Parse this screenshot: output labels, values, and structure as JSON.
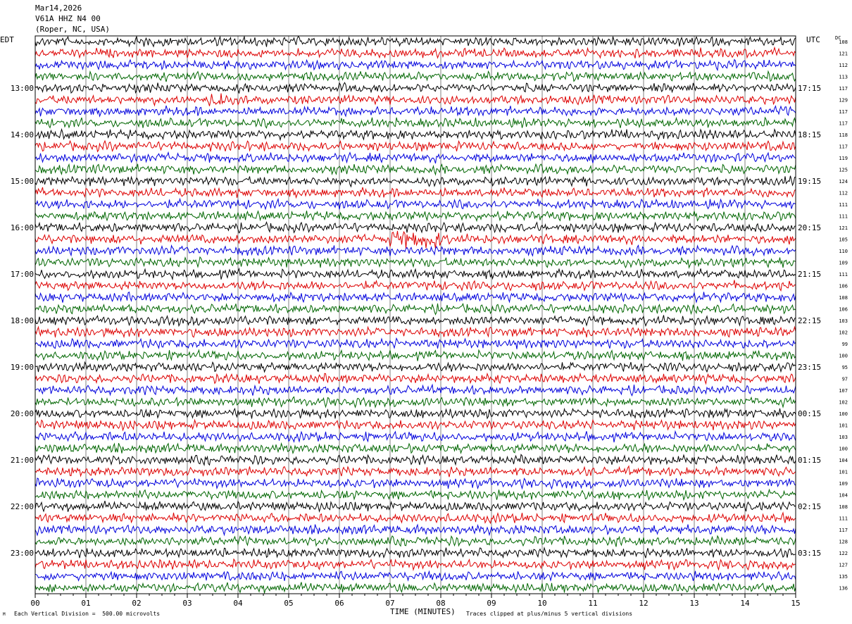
{
  "header": {
    "date": "Mar14,2026",
    "station": "V61A HHZ N4 00",
    "location": "(Roper, NC, USA)"
  },
  "left_zone_label": "EDT",
  "right_zone_label": "UTC",
  "dc_header": "DC",
  "footer": {
    "scale_note": "Each Vertical Division =  500.00 microvolts",
    "xlabel": "TIME (MINUTES)",
    "clip_note": "Traces clipped at plus/minus 5 vertical divisions",
    "corner_mark": "M"
  },
  "colors": {
    "trace_cycle": [
      "#000000",
      "#dd0000",
      "#0000dd",
      "#006600"
    ],
    "grid": "#808080",
    "frame": "#000000"
  },
  "chart_data": {
    "type": "line",
    "title": "",
    "xlabel": "TIME (MINUTES)",
    "xlim": [
      0,
      15
    ],
    "x_ticks": [
      "00",
      "01",
      "02",
      "03",
      "04",
      "05",
      "06",
      "07",
      "08",
      "09",
      "10",
      "11",
      "12",
      "13",
      "14",
      "15"
    ],
    "rows": 48,
    "minutes_per_row": 15,
    "left_time_labels": [
      {
        "row": 4,
        "label": "13:00"
      },
      {
        "row": 8,
        "label": "14:00"
      },
      {
        "row": 12,
        "label": "15:00"
      },
      {
        "row": 16,
        "label": "16:00"
      },
      {
        "row": 20,
        "label": "17:00"
      },
      {
        "row": 24,
        "label": "18:00"
      },
      {
        "row": 28,
        "label": "19:00"
      },
      {
        "row": 32,
        "label": "20:00"
      },
      {
        "row": 36,
        "label": "21:00"
      },
      {
        "row": 40,
        "label": "22:00"
      },
      {
        "row": 44,
        "label": "23:00"
      }
    ],
    "right_time_labels": [
      {
        "row": 4,
        "label": "17:15"
      },
      {
        "row": 8,
        "label": "18:15"
      },
      {
        "row": 12,
        "label": "19:15"
      },
      {
        "row": 16,
        "label": "20:15"
      },
      {
        "row": 20,
        "label": "21:15"
      },
      {
        "row": 24,
        "label": "22:15"
      },
      {
        "row": 28,
        "label": "23:15"
      },
      {
        "row": 32,
        "label": "00:15"
      },
      {
        "row": 36,
        "label": "01:15"
      },
      {
        "row": 40,
        "label": "02:15"
      },
      {
        "row": 44,
        "label": "03:15"
      }
    ],
    "dc_offsets": [
      108,
      121,
      112,
      113,
      117,
      129,
      117,
      117,
      118,
      117,
      119,
      125,
      124,
      112,
      111,
      111,
      121,
      105,
      110,
      109,
      111,
      106,
      108,
      106,
      103,
      102,
      99,
      100,
      95,
      97,
      107,
      102,
      100,
      101,
      103,
      100,
      104,
      101,
      109,
      104,
      108,
      111,
      117,
      128,
      122,
      127,
      135,
      136
    ],
    "trace_amplitude_divisions": 0.5,
    "notable_events": [
      {
        "row": 5,
        "minute_start": 3.4,
        "minute_end": 3.7,
        "amplitude_divisions": 1.0
      },
      {
        "row": 17,
        "minute_start": 7.0,
        "minute_end": 8.0,
        "amplitude_divisions": 0.9
      }
    ]
  }
}
